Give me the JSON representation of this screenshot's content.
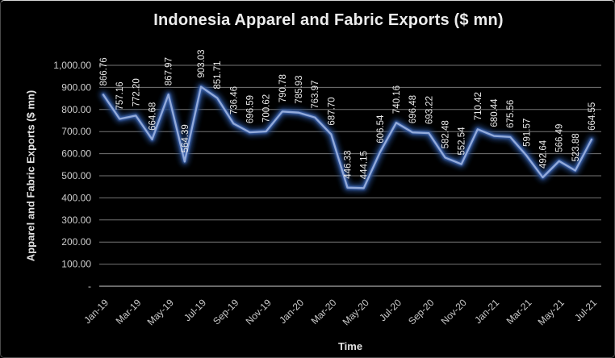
{
  "chart_data": {
    "type": "line",
    "title": "Indonesia Apparel and Fabric Exports ($ mn)",
    "xlabel": "Time",
    "ylabel": "Apparel and Fabric Exports ($ mn)",
    "ylim": [
      0,
      1000
    ],
    "ytick_interval": 100,
    "ytick_labels": [
      "-",
      "100.00",
      "200.00",
      "300.00",
      "400.00",
      "500.00",
      "600.00",
      "700.00",
      "800.00",
      "900.00",
      "1,000.00"
    ],
    "categories": [
      "Jan-19",
      "Feb-19",
      "Mar-19",
      "Apr-19",
      "May-19",
      "Jun-19",
      "Jul-19",
      "Aug-19",
      "Sep-19",
      "Oct-19",
      "Nov-19",
      "Dec-19",
      "Jan-20",
      "Feb-20",
      "Mar-20",
      "Apr-20",
      "May-20",
      "Jun-20",
      "Jul-20",
      "Aug-20",
      "Sep-20",
      "Oct-20",
      "Nov-20",
      "Dec-20",
      "Jan-21",
      "Feb-21",
      "Mar-21",
      "Apr-21",
      "May-21",
      "Jun-21",
      "Jul-21"
    ],
    "xtick_step": 2,
    "values": [
      866.76,
      757.16,
      772.2,
      664.68,
      867.97,
      564.39,
      903.03,
      851.71,
      736.46,
      696.59,
      700.62,
      790.78,
      785.93,
      763.97,
      687.7,
      446.33,
      444.15,
      606.54,
      740.16,
      696.48,
      693.22,
      582.48,
      552.54,
      710.42,
      680.44,
      675.56,
      591.57,
      492.64,
      566.49,
      523.88,
      664.55
    ],
    "data_labels_visible": true,
    "grid": true,
    "legend": "none",
    "colors": {
      "background": "#000000",
      "line_core": "#93ABDB",
      "line_mid": "#3D63AE",
      "line_glow": "#24447F",
      "gridline": "#767676",
      "axis_line": "#A8A8A8",
      "text": "#E3E3E3"
    }
  }
}
